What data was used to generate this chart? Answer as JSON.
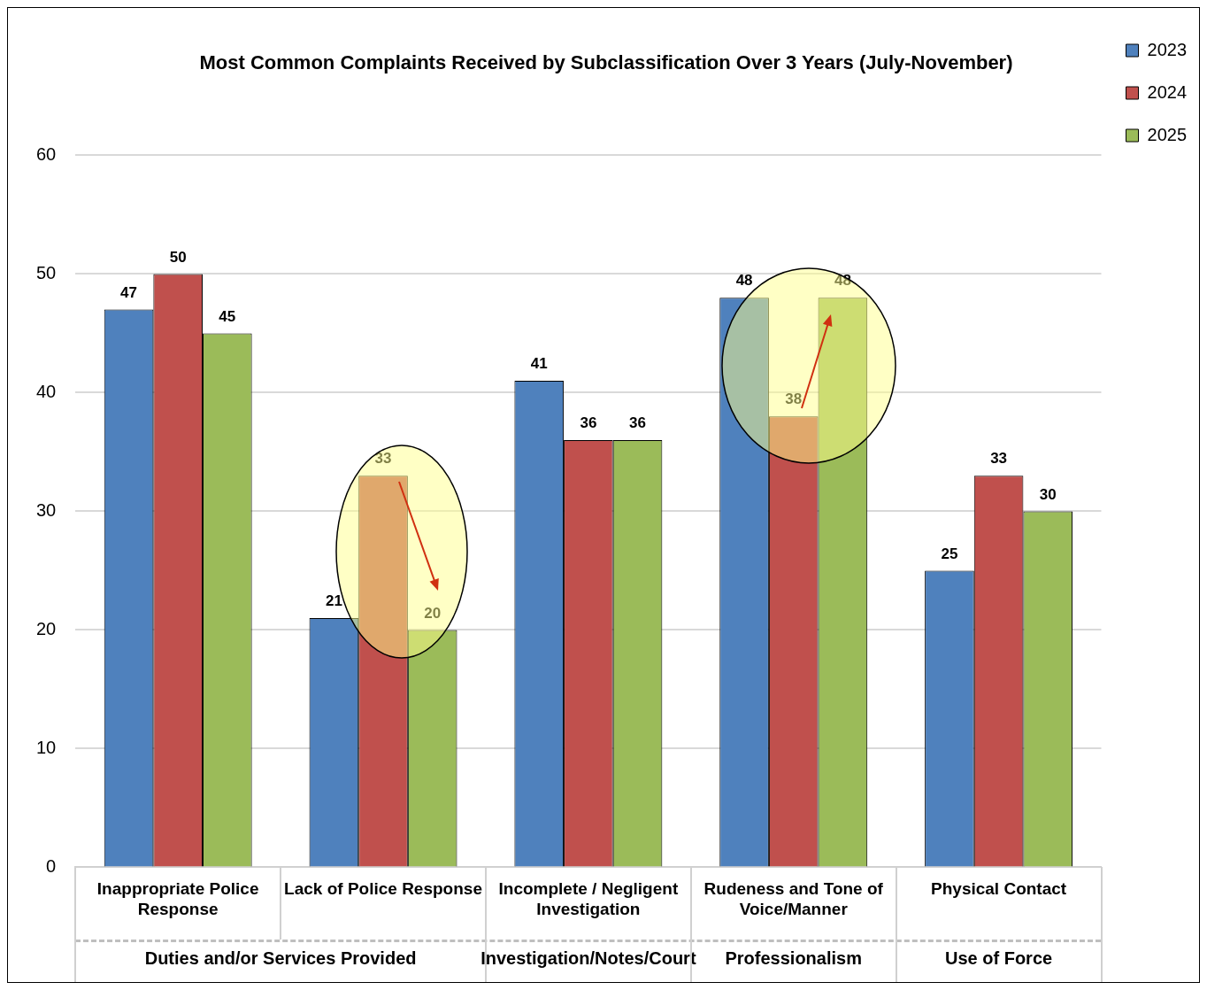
{
  "chart_data": {
    "type": "bar",
    "title": "Most Common Complaints Received by Subclassification Over 3 Years (July-November)",
    "categories": [
      "Inappropriate Police Response",
      "Lack of Police Response",
      "Incomplete / Negligent Investigation",
      "Rudeness and Tone of Voice/Manner",
      "Physical Contact"
    ],
    "series": [
      {
        "name": "2023",
        "color": "#4f81bd",
        "values": [
          47,
          21,
          41,
          48,
          25
        ]
      },
      {
        "name": "2024",
        "color": "#c0504d",
        "values": [
          50,
          33,
          36,
          38,
          33
        ]
      },
      {
        "name": "2025",
        "color": "#9bbb59",
        "values": [
          45,
          20,
          36,
          48,
          30
        ]
      }
    ],
    "ylim": [
      0,
      60
    ],
    "yticks": [
      0,
      10,
      20,
      30,
      40,
      50,
      60
    ],
    "grid": "y",
    "legend": "top right",
    "data_labels": true,
    "annotations": [
      "Duties and/or Services Provided",
      "Investigation/Notes/Court",
      "Professionalism",
      "Use of Force"
    ]
  }
}
